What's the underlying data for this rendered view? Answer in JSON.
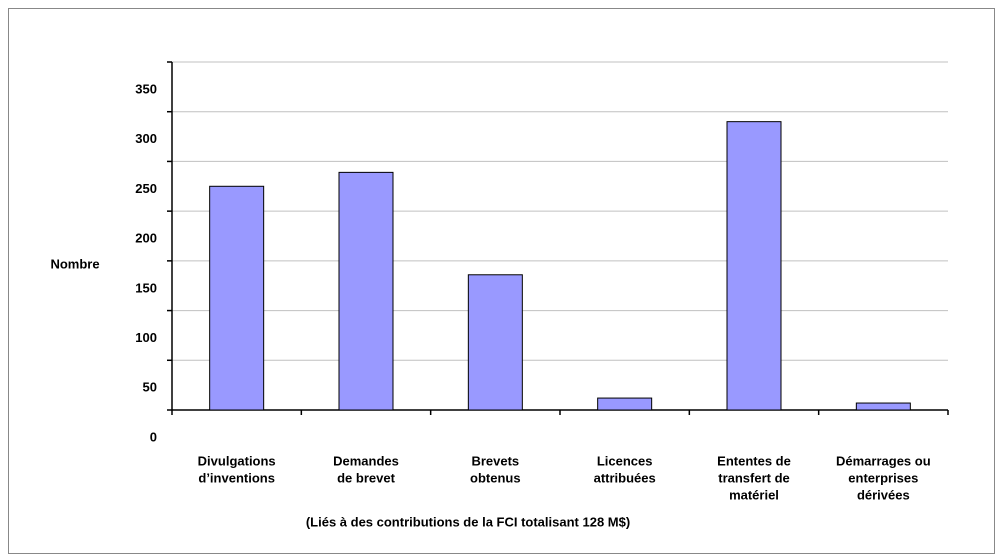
{
  "chart_data": {
    "type": "bar",
    "categories": [
      [
        "Divulgations",
        "d’inventions"
      ],
      [
        "Demandes",
        "de brevet"
      ],
      [
        "Brevets",
        "obtenus"
      ],
      [
        "Licences",
        "attribuées"
      ],
      [
        "Ententes de",
        "transfert de",
        "matériel"
      ],
      [
        "Démarrages ou",
        "enterprises",
        "dérivées"
      ]
    ],
    "values": [
      225,
      239,
      136,
      12,
      290,
      7
    ],
    "color": "#9999ff",
    "ylabel": "Nombre",
    "xlabel": "(Liés à des contributions de la FCI totalisant 128 M$)",
    "ylim": [
      0,
      350
    ],
    "yticks": [
      0,
      50,
      100,
      150,
      200,
      250,
      300,
      350
    ],
    "grid": true
  }
}
